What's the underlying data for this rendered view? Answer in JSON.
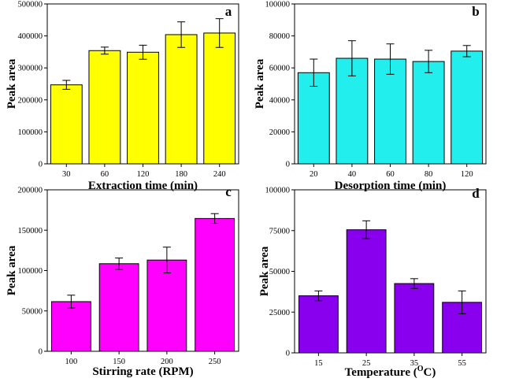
{
  "chart_data": [
    {
      "type": "bar",
      "panel_label": "a",
      "categories": [
        "30",
        "60",
        "120",
        "180",
        "240"
      ],
      "values": [
        247000,
        354000,
        349000,
        404000,
        409000
      ],
      "errors": [
        14000,
        11000,
        22000,
        40000,
        45000
      ],
      "xlabel": "Extraction time (min)",
      "ylabel": "Peak area",
      "ylim": [
        0,
        500000
      ],
      "yticks": [
        "0",
        "100000",
        "200000",
        "300000",
        "400000",
        "500000"
      ],
      "color": "#ffff00"
    },
    {
      "type": "bar",
      "panel_label": "b",
      "categories": [
        "20",
        "40",
        "60",
        "80",
        "120"
      ],
      "values": [
        57000,
        66000,
        65500,
        64000,
        70500
      ],
      "errors": [
        8500,
        11000,
        9500,
        7000,
        3500
      ],
      "xlabel": "Desorption time (min)",
      "ylabel": "Peak area",
      "ylim": [
        0,
        100000
      ],
      "yticks": [
        "0",
        "20000",
        "40000",
        "60000",
        "80000",
        "100000"
      ],
      "color": "#22eeee"
    },
    {
      "type": "bar",
      "panel_label": "c",
      "categories": [
        "100",
        "150",
        "200",
        "250"
      ],
      "values": [
        61500,
        108500,
        113000,
        164500
      ],
      "errors": [
        8000,
        7000,
        16000,
        6000
      ],
      "xlabel": "Stirring rate (RPM)",
      "ylabel": "Peak area",
      "ylim": [
        0,
        200000
      ],
      "yticks": [
        "0",
        "50000",
        "100000",
        "150000",
        "200000"
      ],
      "color": "#ff00ff"
    },
    {
      "type": "bar",
      "panel_label": "d",
      "categories": [
        "15",
        "25",
        "35",
        "55"
      ],
      "values": [
        35000,
        75500,
        42500,
        31000
      ],
      "errors": [
        3000,
        5500,
        3000,
        7000
      ],
      "xlabel": "Temperature",
      "xlabel_unit_prefix": "(",
      "xlabel_unit_sup": "O",
      "xlabel_unit_main": "C)",
      "ylabel": "Peak area",
      "ylim": [
        0,
        100000
      ],
      "yticks": [
        "0",
        "25000",
        "50000",
        "75000",
        "100000"
      ],
      "color": "#8800ee"
    }
  ]
}
